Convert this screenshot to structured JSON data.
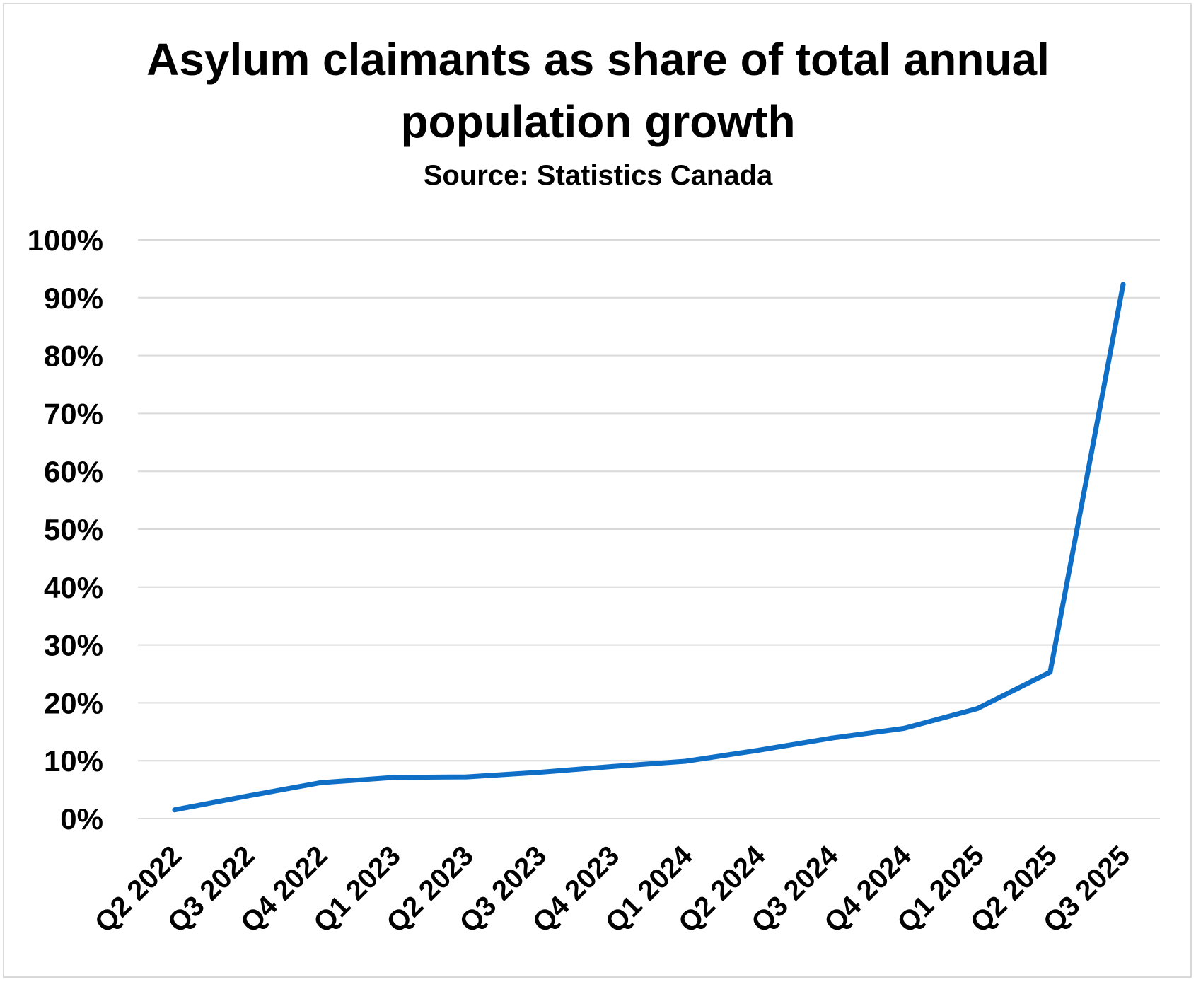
{
  "title_lines": [
    "Asylum claimants as share of total annual",
    "population growth"
  ],
  "subtitle": "Source: Statistics Canada",
  "colors": {
    "line": "#0f6fc6",
    "grid": "#d9d9d9",
    "text": "#000000",
    "border": "#d9d9d9"
  },
  "chart_data": {
    "type": "line",
    "title": "Asylum claimants as share of total annual population growth",
    "subtitle": "Source: Statistics Canada",
    "xlabel": "",
    "ylabel": "",
    "categories": [
      "Q2 2022",
      "Q3 2022",
      "Q4 2022",
      "Q1 2023",
      "Q2 2023",
      "Q3 2023",
      "Q4 2023",
      "Q1 2024",
      "Q2 2024",
      "Q3 2024",
      "Q4 2024",
      "Q1 2025",
      "Q2 2025",
      "Q3 2025"
    ],
    "series": [
      {
        "values": [
          1.5,
          3.9,
          6.2,
          7.1,
          7.2,
          8.0,
          9.0,
          9.9,
          11.8,
          13.9,
          15.6,
          19.0,
          25.3,
          92.3
        ]
      }
    ],
    "ylim": [
      0,
      100
    ],
    "y_ticks": [
      0,
      10,
      20,
      30,
      40,
      50,
      60,
      70,
      80,
      90,
      100
    ],
    "y_tick_labels": [
      "0%",
      "10%",
      "20%",
      "30%",
      "40%",
      "50%",
      "60%",
      "70%",
      "80%",
      "90%",
      "100%"
    ],
    "grid": true,
    "legend": false
  }
}
